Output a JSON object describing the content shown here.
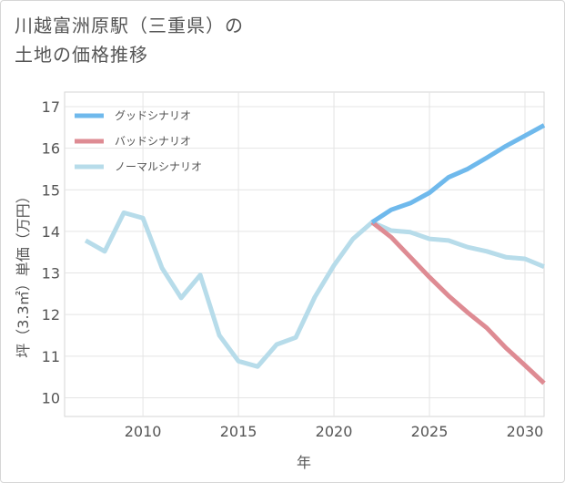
{
  "chart_data": {
    "type": "line",
    "title_lines": [
      "川越富洲原駅（三重県）の",
      "土地の価格推移"
    ],
    "xlabel": "年",
    "ylabel": "坪（3.3㎡）単価（万円）",
    "xlim": [
      2005.9,
      2031
    ],
    "ylim": [
      9.55,
      17.35
    ],
    "x_ticks": [
      2010,
      2015,
      2020,
      2025,
      2030
    ],
    "y_ticks": [
      10,
      11,
      12,
      13,
      14,
      15,
      16,
      17
    ],
    "series": [
      {
        "name": "グッドシナリオ",
        "color": "#6fb9ec",
        "x": [
          2022,
          2023,
          2024,
          2025,
          2026,
          2027,
          2028,
          2029,
          2030,
          2031
        ],
        "values": [
          14.22,
          14.52,
          14.68,
          14.93,
          15.3,
          15.5,
          15.77,
          16.05,
          16.3,
          16.55
        ]
      },
      {
        "name": "バッドシナリオ",
        "color": "#de8b93",
        "x": [
          2022,
          2023,
          2024,
          2025,
          2026,
          2027,
          2028,
          2029,
          2030,
          2031
        ],
        "values": [
          14.22,
          13.86,
          13.38,
          12.9,
          12.45,
          12.05,
          11.68,
          11.2,
          10.78,
          10.35
        ]
      },
      {
        "name": "ノーマルシナリオ",
        "color": "#b7dcea",
        "x": [
          2007,
          2008,
          2009,
          2010,
          2011,
          2012,
          2013,
          2014,
          2015,
          2016,
          2017,
          2018,
          2019,
          2020,
          2021,
          2022,
          2023,
          2024,
          2025,
          2026,
          2027,
          2028,
          2029,
          2030,
          2031
        ],
        "values": [
          13.78,
          13.52,
          14.45,
          14.32,
          13.12,
          12.4,
          12.95,
          11.5,
          10.88,
          10.75,
          11.28,
          11.45,
          12.42,
          13.18,
          13.82,
          14.22,
          14.02,
          13.98,
          13.82,
          13.78,
          13.62,
          13.52,
          13.38,
          13.34,
          13.15
        ]
      }
    ]
  }
}
